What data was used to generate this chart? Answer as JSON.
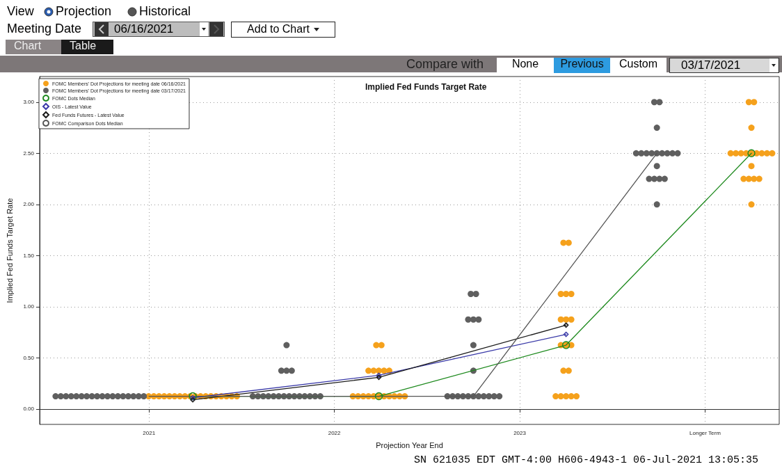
{
  "chart_data": {
    "type": "scatter",
    "title": "Implied Fed Funds Target Rate",
    "xlabel": "Projection Year End",
    "ylabel": "Implied Fed Funds Target Rate",
    "xlim": [
      2020.41,
      2024.4
    ],
    "xticks": [
      2021,
      2022,
      2023,
      {
        "value": 2024,
        "label": "Longer Term"
      }
    ],
    "ylim": [
      -0.15,
      3.25
    ],
    "yticks": [
      {
        "value": 0,
        "label": "0.00"
      },
      {
        "value": 0.5,
        "label": "0.50"
      },
      {
        "value": 1,
        "label": "1.00"
      },
      {
        "value": 1.5,
        "label": "1.50"
      },
      {
        "value": 2,
        "label": "2.00"
      },
      {
        "value": 2.5,
        "label": "2.50"
      },
      {
        "value": 3,
        "label": "3.00"
      }
    ],
    "grid": true,
    "legend": "top left",
    "series": [
      {
        "name": "FOMC Members' Dot Projections for meeting date 06/16/2021",
        "marker": "circle",
        "color": "#f5a11c",
        "x": [
          2020.998,
          2021.026,
          2021.054,
          2021.082,
          2021.11,
          2021.138,
          2021.166,
          2021.194,
          2021.222,
          2021.25,
          2021.278,
          2021.306,
          2021.334,
          2021.362,
          2021.39,
          2021.418,
          2021.446,
          2021.474,
          2022.1,
          2022.128,
          2022.156,
          2022.184,
          2022.212,
          2022.24,
          2022.268,
          2022.296,
          2022.324,
          2022.352,
          2022.38,
          2022.184,
          2022.212,
          2022.24,
          2022.268,
          2022.296,
          2022.226,
          2022.254,
          2023.194,
          2023.222,
          2023.25,
          2023.278,
          2023.306,
          2023.236,
          2023.264,
          2023.222,
          2023.25,
          2023.278,
          2023.222,
          2023.25,
          2023.278,
          2023.222,
          2023.25,
          2023.278,
          2023.236,
          2023.264,
          2024.25,
          2024.208,
          2024.236,
          2024.264,
          2024.292,
          2024.25,
          2024.138,
          2024.166,
          2024.194,
          2024.222,
          2024.25,
          2024.278,
          2024.306,
          2024.334,
          2024.362,
          2024.25,
          2024.236,
          2024.264
        ],
        "values": [
          0.125,
          0.125,
          0.125,
          0.125,
          0.125,
          0.125,
          0.125,
          0.125,
          0.125,
          0.125,
          0.125,
          0.125,
          0.125,
          0.125,
          0.125,
          0.125,
          0.125,
          0.125,
          0.125,
          0.125,
          0.125,
          0.125,
          0.125,
          0.125,
          0.125,
          0.125,
          0.125,
          0.125,
          0.125,
          0.375,
          0.375,
          0.375,
          0.375,
          0.375,
          0.625,
          0.625,
          0.125,
          0.125,
          0.125,
          0.125,
          0.125,
          0.375,
          0.375,
          0.625,
          0.625,
          0.625,
          0.875,
          0.875,
          0.875,
          1.125,
          1.125,
          1.125,
          1.625,
          1.625,
          2.0,
          2.25,
          2.25,
          2.25,
          2.25,
          2.375,
          2.5,
          2.5,
          2.5,
          2.5,
          2.5,
          2.5,
          2.5,
          2.5,
          2.5,
          2.75,
          3.0,
          3.0
        ]
      },
      {
        "name": "FOMC Members' Dot Projections for meeting date 03/17/2021",
        "marker": "circle",
        "color": "#5f5f5f",
        "x": [
          2020.496,
          2020.524,
          2020.552,
          2020.58,
          2020.608,
          2020.636,
          2020.664,
          2020.692,
          2020.72,
          2020.748,
          2020.776,
          2020.804,
          2020.832,
          2020.86,
          2020.888,
          2020.916,
          2020.944,
          2020.972,
          2021.56,
          2021.588,
          2021.616,
          2021.644,
          2021.672,
          2021.7,
          2021.728,
          2021.756,
          2021.784,
          2021.812,
          2021.84,
          2021.868,
          2021.896,
          2021.924,
          2021.714,
          2021.742,
          2021.77,
          2021.742,
          2022.61,
          2022.638,
          2022.666,
          2022.694,
          2022.722,
          2022.75,
          2022.778,
          2022.806,
          2022.834,
          2022.862,
          2022.89,
          2022.75,
          2022.75,
          2022.722,
          2022.75,
          2022.778,
          2022.736,
          2022.764,
          2023.74,
          2023.698,
          2023.726,
          2023.754,
          2023.782,
          2023.74,
          2023.628,
          2023.656,
          2023.684,
          2023.712,
          2023.74,
          2023.768,
          2023.796,
          2023.824,
          2023.852,
          2023.74,
          2023.726,
          2023.754
        ],
        "values": [
          0.125,
          0.125,
          0.125,
          0.125,
          0.125,
          0.125,
          0.125,
          0.125,
          0.125,
          0.125,
          0.125,
          0.125,
          0.125,
          0.125,
          0.125,
          0.125,
          0.125,
          0.125,
          0.125,
          0.125,
          0.125,
          0.125,
          0.125,
          0.125,
          0.125,
          0.125,
          0.125,
          0.125,
          0.125,
          0.125,
          0.125,
          0.125,
          0.375,
          0.375,
          0.375,
          0.625,
          0.125,
          0.125,
          0.125,
          0.125,
          0.125,
          0.125,
          0.125,
          0.125,
          0.125,
          0.125,
          0.125,
          0.375,
          0.625,
          0.875,
          0.875,
          0.875,
          1.125,
          1.125,
          2.0,
          2.25,
          2.25,
          2.25,
          2.25,
          2.375,
          2.5,
          2.5,
          2.5,
          2.5,
          2.5,
          2.5,
          2.5,
          2.5,
          2.5,
          2.75,
          3.0,
          3.0
        ]
      },
      {
        "name": "FOMC Dots Median",
        "type": "line",
        "marker": "circle",
        "color": "#1e8a1e",
        "x": [
          2021.236,
          2022.24,
          2023.25,
          2024.25
        ],
        "values": [
          0.125,
          0.125,
          0.625,
          2.5
        ]
      },
      {
        "name": "OIS - Latest Value",
        "type": "line",
        "marker": "diamond",
        "color": "#3a3aa8",
        "x": [
          2021.236,
          2022.24,
          2023.25
        ],
        "values": [
          0.11,
          0.33,
          0.73
        ]
      },
      {
        "name": "Fed Funds Futures - Latest Value",
        "type": "line",
        "marker": "diamond",
        "color": "#1a1a1a",
        "x": [
          2021.236,
          2022.24,
          2023.25
        ],
        "values": [
          0.09,
          0.31,
          0.82
        ]
      },
      {
        "name": "FOMC Comparison Dots Median",
        "type": "line",
        "marker": "none",
        "color": "#555555",
        "x": [
          2021.0,
          2021.742,
          2022.75,
          2023.74
        ],
        "values": [
          0.125,
          0.125,
          0.125,
          2.5
        ]
      }
    ],
    "annotations": [
      "View",
      "Projection",
      "Historical",
      "Meeting Date",
      "06/16/2021",
      "Add to Chart",
      "Chart",
      "Table",
      "Compare with",
      "None",
      "Previous",
      "Custom",
      "03/17/2021",
      "SN 621035 EDT  GMT-4:00 H606-4943-1 06-Jul-2021 13:05:35"
    ]
  }
}
